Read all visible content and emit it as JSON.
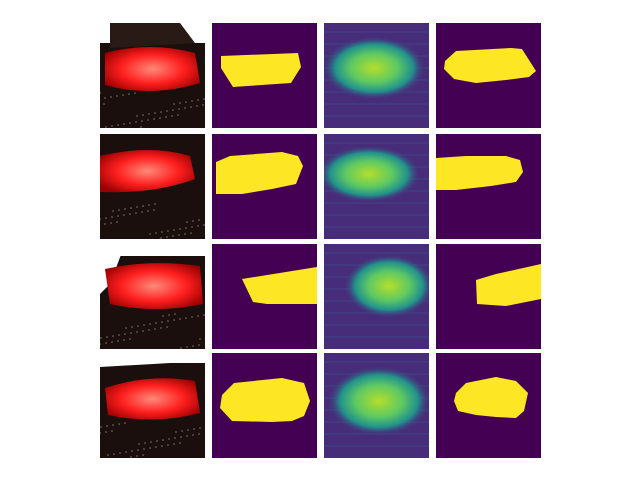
{
  "figure": {
    "columns": [
      "photo",
      "ground-truth-mask",
      "heatmap",
      "predicted-mask"
    ],
    "rows": 4
  },
  "colors": {
    "mask_background": "#440154",
    "mask_foreground": "#fde725",
    "heatmap_low": "#472c7a",
    "heatmap_mid": "#21918c",
    "heatmap_high": "#b5de2b",
    "lid_red": "#ff1f1f",
    "skin_dark": "#1a0f0d"
  }
}
